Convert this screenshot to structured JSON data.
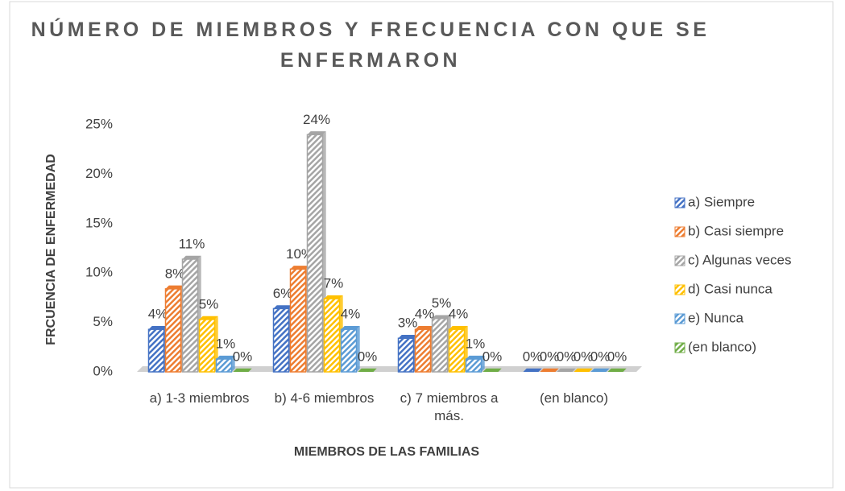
{
  "chart_data": {
    "type": "bar3d",
    "title": "NÚMERO DE MIEMBROS Y FRECUENCIA CON QUE SE ENFERMARON",
    "x_label": "MIEMBROS DE LAS FAMILIAS",
    "y_label": "FRCUENCIA DE ENFERMEDAD",
    "categories": [
      "a) 1-3 miembros",
      "b) 4-6 miembros",
      "c) 7 miembros a más.",
      "(en blanco)"
    ],
    "series": [
      {
        "name": "a) Siempre",
        "color": "#4472c4",
        "values": [
          4.3,
          6.4,
          3.4,
          0
        ],
        "value_labels": [
          "4%",
          "6%",
          "3%",
          "0%"
        ]
      },
      {
        "name": "b) Casi siempre",
        "color": "#ed7d31",
        "values": [
          8.4,
          10.4,
          4.3,
          0
        ],
        "value_labels": [
          "8%",
          "10%",
          "4%",
          "0%"
        ]
      },
      {
        "name": "c) Algunas veces",
        "color": "#a5a5a5",
        "values": [
          11.4,
          24,
          5.4,
          0
        ],
        "value_labels": [
          "11%",
          "24%",
          "5%",
          "0%"
        ]
      },
      {
        "name": "d) Casi nunca",
        "color": "#ffc000",
        "values": [
          5.3,
          7.4,
          4.3,
          0
        ],
        "value_labels": [
          "5%",
          "7%",
          "4%",
          "0%"
        ]
      },
      {
        "name": "e) Nunca",
        "color": "#5b9bd5",
        "values": [
          1.3,
          4.3,
          1.3,
          0
        ],
        "value_labels": [
          "1%",
          "4%",
          "1%",
          "0%"
        ]
      },
      {
        "name": "(en blanco)",
        "color": "#70ad47",
        "values": [
          0,
          0,
          0,
          0
        ],
        "value_labels": [
          "0%",
          "0%",
          "0%",
          "0%"
        ]
      }
    ],
    "ylim": [
      0,
      25
    ],
    "yticks": [
      {
        "value": 0,
        "label": "0%"
      },
      {
        "value": 5,
        "label": "5%"
      },
      {
        "value": 10,
        "label": "10%"
      },
      {
        "value": 15,
        "label": "15%"
      },
      {
        "value": 20,
        "label": "20%"
      },
      {
        "value": 25,
        "label": "25%"
      }
    ],
    "legend": "right"
  }
}
